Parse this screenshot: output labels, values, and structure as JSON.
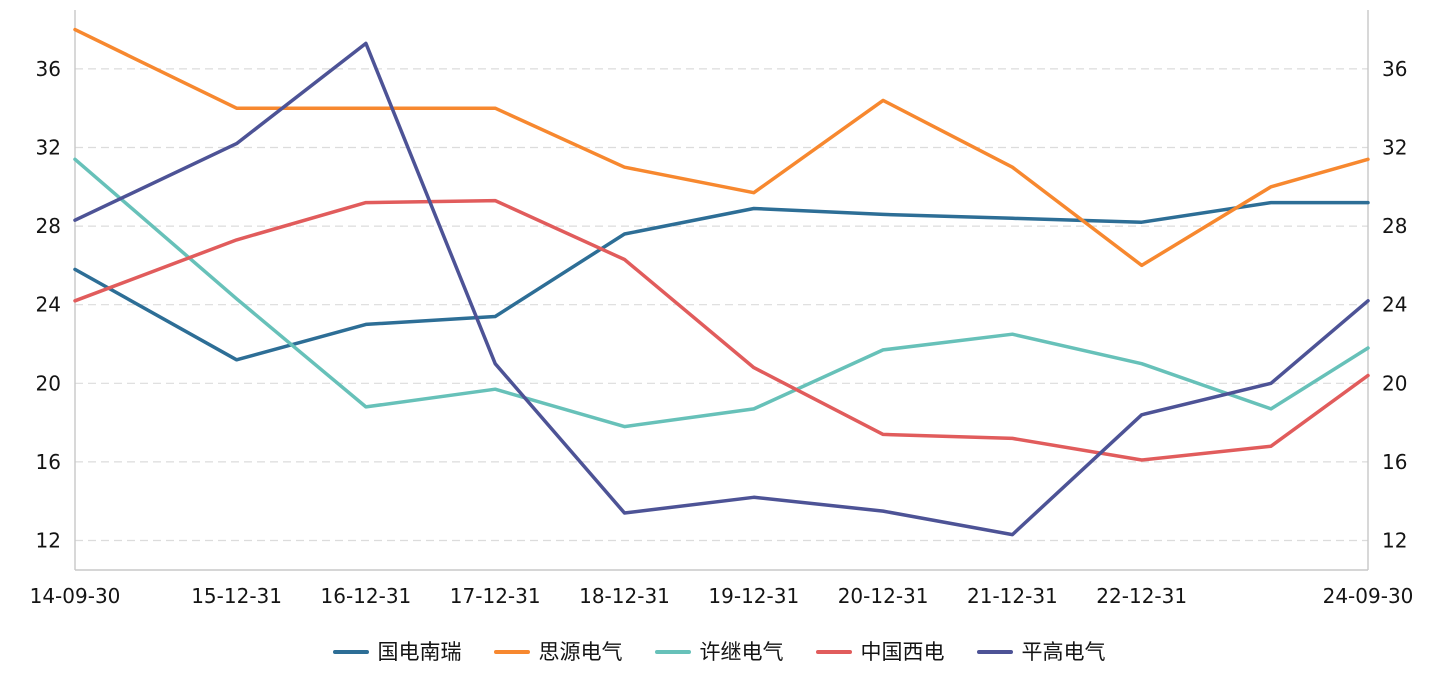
{
  "chart_data": {
    "type": "line",
    "title": "",
    "x_labels": [
      "14-09-30",
      "15-12-31",
      "16-12-31",
      "17-12-31",
      "18-12-31",
      "19-12-31",
      "20-12-31",
      "21-12-31",
      "22-12-31",
      "",
      "24-09-30"
    ],
    "x_positions": [
      0,
      0.125,
      0.225,
      0.325,
      0.425,
      0.525,
      0.625,
      0.725,
      0.825,
      0.925,
      1.0
    ],
    "series": [
      {
        "name": "国电南瑞",
        "color": "#2d6e96",
        "values": [
          25.8,
          21.2,
          23.0,
          23.4,
          27.6,
          28.9,
          28.6,
          28.4,
          28.2,
          29.2,
          29.2
        ]
      },
      {
        "name": "思源电气",
        "color": "#f7882f",
        "values": [
          38.0,
          34.0,
          34.0,
          34.0,
          31.0,
          29.7,
          34.4,
          31.0,
          26.0,
          30.0,
          31.4
        ]
      },
      {
        "name": "许继电气",
        "color": "#67c1b9",
        "values": [
          31.4,
          24.3,
          18.8,
          19.7,
          17.8,
          18.7,
          21.7,
          22.5,
          21.0,
          18.7,
          21.8
        ]
      },
      {
        "name": "中国西电",
        "color": "#e15c5c",
        "values": [
          24.2,
          27.3,
          29.2,
          29.3,
          26.3,
          20.8,
          17.4,
          17.2,
          16.1,
          16.8,
          20.4
        ]
      },
      {
        "name": "平高电气",
        "color": "#4d5396",
        "values": [
          28.3,
          32.2,
          37.3,
          21.0,
          13.4,
          14.2,
          13.5,
          12.3,
          18.4,
          20.0,
          24.2
        ]
      }
    ],
    "y_ticks": [
      12,
      16,
      20,
      24,
      28,
      32,
      36
    ],
    "ylim": [
      10.5,
      39.0
    ],
    "grid": "horizontal-dashed",
    "grid_color": "#dcdcdc",
    "axis_color": "#c8c8c8",
    "text_color": "#141414",
    "y_axis_sides": "left-and-right",
    "legend_position": "bottom"
  }
}
